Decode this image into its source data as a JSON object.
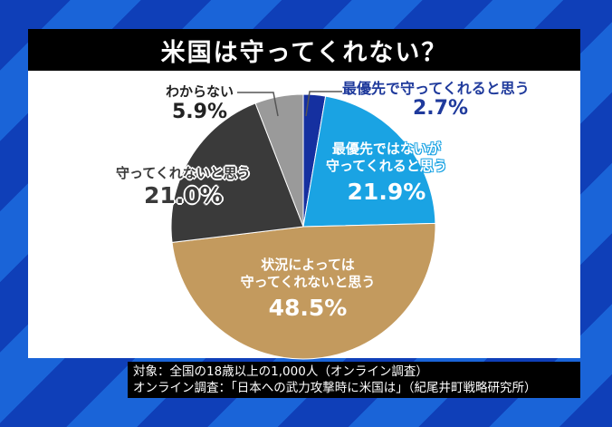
{
  "title": "米国は守ってくれない？",
  "chart_data": {
    "type": "pie",
    "title": "米国は守ってくれない？",
    "start_angle_deg": 0,
    "direction": "clockwise",
    "slices": [
      {
        "label": "最優先で守ってくれると思う",
        "value": 2.7,
        "display": "2.7%",
        "color": "#1530a0"
      },
      {
        "label": "最優先ではないが守ってくれると思う",
        "value": 21.9,
        "display": "21.9%",
        "color": "#1aa3e3"
      },
      {
        "label": "状況によっては守ってくれないと思う",
        "value": 48.5,
        "display": "48.5%",
        "color": "#c39a5e"
      },
      {
        "label": "守ってくれないと思う",
        "value": 21.0,
        "display": "21.0%",
        "color": "#3a3a3a"
      },
      {
        "label": "わからない",
        "value": 5.9,
        "display": "5.9%",
        "color": "#9a9a9a"
      }
    ]
  },
  "labels": {
    "top_priority": {
      "line1": "最優先で守ってくれると思う",
      "value": "2.7%"
    },
    "not_top_priority": {
      "line1": "最優先ではないが",
      "line2": "守ってくれると思う",
      "value": "21.9%"
    },
    "depends": {
      "line1": "状況によっては",
      "line2": "守ってくれないと思う",
      "value": "48.5%"
    },
    "wont_protect": {
      "line1": "守ってくれないと思う",
      "value": "21.0%"
    },
    "dont_know": {
      "line1": "わからない",
      "value": "5.9%"
    }
  },
  "footer": {
    "line1": "対象：全国の18歳以上の1,000人（オンライン調査）",
    "line2": "オンライン調査：「日本への武力攻撃時に米国は」（紀尾井町戦略研究所）"
  }
}
